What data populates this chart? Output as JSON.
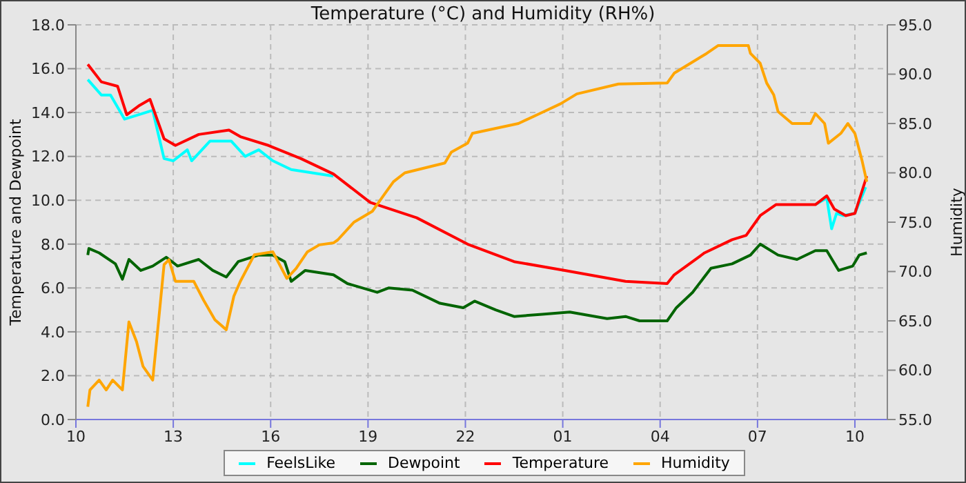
{
  "chart_data": {
    "type": "line",
    "title": "Temperature (°C) and Humidity (RH%)",
    "ylabel": "Temperature and Dewpoint",
    "y2label": "Humidity",
    "xlim": [
      "--01-01T10:00",
      "--01-02T11:00"
    ],
    "xticks": [
      {
        "value": "--01-01T10:00",
        "label": "10"
      },
      {
        "value": "--01-01T13:00",
        "label": "13"
      },
      {
        "value": "--01-01T16:00",
        "label": "16"
      },
      {
        "value": "--01-01T19:00",
        "label": "19"
      },
      {
        "value": "--01-01T22:00",
        "label": "22"
      },
      {
        "value": "--01-02T01:00",
        "label": "01"
      },
      {
        "value": "--01-02T04:00",
        "label": "04"
      },
      {
        "value": "--01-02T07:00",
        "label": "07"
      },
      {
        "value": "--01-02T10:00",
        "label": "10"
      }
    ],
    "ylim": [
      0,
      18
    ],
    "yticks": [
      {
        "value": 0,
        "label": "0.0"
      },
      {
        "value": 2,
        "label": "2.0"
      },
      {
        "value": 4,
        "label": "4.0"
      },
      {
        "value": 6,
        "label": "6.0"
      },
      {
        "value": 8,
        "label": "8.0"
      },
      {
        "value": 10,
        "label": "10.0"
      },
      {
        "value": 12,
        "label": "12.0"
      },
      {
        "value": 14,
        "label": "14.0"
      },
      {
        "value": 16,
        "label": "16.0"
      },
      {
        "value": 18,
        "label": "18.0"
      }
    ],
    "y2lim": [
      55,
      95
    ],
    "y2ticks": [
      {
        "value": 55,
        "label": "55.0"
      },
      {
        "value": 60,
        "label": "60.0"
      },
      {
        "value": 65,
        "label": "65.0"
      },
      {
        "value": 70,
        "label": "70.0"
      },
      {
        "value": 75,
        "label": "75.0"
      },
      {
        "value": 80,
        "label": "80.0"
      },
      {
        "value": 85,
        "label": "85.0"
      },
      {
        "value": 90,
        "label": "90.0"
      },
      {
        "value": 95,
        "label": "95.0"
      }
    ],
    "grid": true,
    "legend": "bottom",
    "marker": "none",
    "line_style": "solid",
    "series": [
      {
        "name": "FeelsLike",
        "color": "#00ffff",
        "x": [
          "--01-01T10:22",
          "--01-01T10:47",
          "--01-01T11:04",
          "--01-01T11:30",
          "--01-01T12:22",
          "--01-01T12:43",
          "--01-01T13:00",
          "--01-01T13:26",
          "--01-01T13:34",
          "--01-01T14:08",
          "--01-01T14:47",
          "--01-01T15:13",
          "--01-01T15:38",
          "--01-01T16:04",
          "--01-01T16:38",
          "--01-01T17:56",
          "--01-01T19:04",
          "--01-01T20:30",
          "--01-01T22:04",
          "--01-01T23:30",
          "--01-02T01:04",
          "--01-02T02:56",
          "--01-02T04:13",
          "--01-02T04:26",
          "--01-02T05:22",
          "--01-02T06:13",
          "--01-02T06:39",
          "--01-02T07:05",
          "--01-02T07:34",
          "--01-02T08:47",
          "--01-02T09:08",
          "--01-02T09:17",
          "--01-02T09:26",
          "--01-02T09:38",
          "--01-02T10:00",
          "--01-02T10:20"
        ],
        "values": [
          15.5,
          14.8,
          14.8,
          13.7,
          14.1,
          11.9,
          11.8,
          12.3,
          11.8,
          12.7,
          12.7,
          12.0,
          12.3,
          11.8,
          11.4,
          11.1,
          null,
          null,
          null,
          null,
          null,
          null,
          null,
          null,
          null,
          null,
          null,
          null,
          null,
          9.8,
          10.1,
          8.7,
          9.4,
          9.3,
          9.4,
          10.6
        ]
      },
      {
        "name": "Dewpoint",
        "color": "#006400",
        "x": [
          "--01-01T10:22",
          "--01-01T10:24",
          "--01-01T10:43",
          "--01-01T11:13",
          "--01-01T11:26",
          "--01-01T11:38",
          "--01-01T12:00",
          "--01-01T12:22",
          "--01-01T12:47",
          "--01-01T13:08",
          "--01-01T13:47",
          "--01-01T14:13",
          "--01-01T14:38",
          "--01-01T15:00",
          "--01-01T15:38",
          "--01-01T16:04",
          "--01-01T16:26",
          "--01-01T16:38",
          "--01-01T17:04",
          "--01-01T17:56",
          "--01-01T18:22",
          "--01-01T19:17",
          "--01-01T19:38",
          "--01-01T20:22",
          "--01-01T21:13",
          "--01-01T21:56",
          "--01-01T22:17",
          "--01-01T22:56",
          "--01-01T23:30",
          "--01-02T00:22",
          "--01-02T01:13",
          "--01-02T02:22",
          "--01-02T02:56",
          "--01-02T03:22",
          "--01-02T04:13",
          "--01-02T04:30",
          "--01-02T05:00",
          "--01-02T05:34",
          "--01-02T06:13",
          "--01-02T06:47",
          "--01-02T07:05",
          "--01-02T07:38",
          "--01-02T08:13",
          "--01-02T08:47",
          "--01-02T09:08",
          "--01-02T09:30",
          "--01-02T09:56",
          "--01-02T10:08",
          "--01-02T10:22"
        ],
        "values": [
          7.5,
          7.8,
          7.6,
          7.1,
          6.4,
          7.3,
          6.8,
          7.0,
          7.4,
          7.0,
          7.3,
          6.8,
          6.5,
          7.2,
          7.5,
          7.5,
          7.2,
          6.3,
          6.8,
          6.6,
          6.2,
          5.8,
          6.0,
          5.9,
          5.3,
          5.1,
          5.4,
          5.0,
          4.7,
          4.8,
          4.9,
          4.6,
          4.7,
          4.5,
          4.5,
          5.1,
          5.8,
          6.9,
          7.1,
          7.5,
          8.0,
          7.5,
          7.3,
          7.7,
          7.7,
          6.8,
          7.0,
          7.5,
          7.6
        ]
      },
      {
        "name": "Temperature",
        "color": "#ff0000",
        "x": [
          "--01-01T10:22",
          "--01-01T10:47",
          "--01-01T11:17",
          "--01-01T11:34",
          "--01-01T11:56",
          "--01-01T12:17",
          "--01-01T12:30",
          "--01-01T12:43",
          "--01-01T13:04",
          "--01-01T13:47",
          "--01-01T14:43",
          "--01-01T15:04",
          "--01-01T15:56",
          "--01-01T16:56",
          "--01-01T17:56",
          "--01-01T19:04",
          "--01-01T20:30",
          "--01-01T22:04",
          "--01-01T23:30",
          "--01-02T01:04",
          "--01-02T02:56",
          "--01-02T04:13",
          "--01-02T04:26",
          "--01-02T05:22",
          "--01-02T06:13",
          "--01-02T06:39",
          "--01-02T07:05",
          "--01-02T07:34",
          "--01-02T08:47",
          "--01-02T09:08",
          "--01-02T09:22",
          "--01-02T09:43",
          "--01-02T10:00",
          "--01-02T10:22"
        ],
        "values": [
          16.2,
          15.4,
          15.2,
          13.9,
          14.3,
          14.6,
          13.7,
          12.8,
          12.5,
          13.0,
          13.2,
          12.9,
          12.5,
          11.9,
          11.2,
          9.9,
          9.2,
          8.0,
          7.2,
          6.8,
          6.3,
          6.2,
          6.6,
          7.6,
          8.2,
          8.4,
          9.3,
          9.8,
          9.8,
          10.2,
          9.6,
          9.3,
          9.4,
          11.1
        ]
      },
      {
        "name": "Humidity",
        "color": "#ffa500",
        "axis": "y2",
        "x": [
          "--01-01T10:22",
          "--01-01T10:26",
          "--01-01T10:43",
          "--01-01T10:56",
          "--01-01T11:08",
          "--01-01T11:26",
          "--01-01T11:38",
          "--01-01T11:52",
          "--01-01T12:04",
          "--01-01T12:22",
          "--01-01T12:30",
          "--01-01T12:43",
          "--01-01T12:52",
          "--01-01T13:04",
          "--01-01T13:38",
          "--01-01T13:56",
          "--01-01T14:17",
          "--01-01T14:38",
          "--01-01T14:52",
          "--01-01T15:04",
          "--01-01T15:30",
          "--01-01T16:04",
          "--01-01T16:30",
          "--01-01T16:47",
          "--01-01T17:08",
          "--01-01T17:30",
          "--01-01T17:56",
          "--01-01T18:04",
          "--01-01T18:34",
          "--01-01T19:08",
          "--01-01T19:30",
          "--01-01T19:47",
          "--01-01T20:08",
          "--01-01T21:22",
          "--01-01T21:34",
          "--01-01T22:04",
          "--01-01T22:13",
          "--01-01T23:38",
          "--01-02T00:17",
          "--01-02T00:56",
          "--01-02T01:26",
          "--01-02T02:43",
          "--01-02T04:13",
          "--01-02T04:26",
          "--01-02T04:56",
          "--01-02T05:26",
          "--01-02T05:47",
          "--01-02T06:43",
          "--01-02T06:47",
          "--01-02T07:05",
          "--01-02T07:17",
          "--01-02T07:30",
          "--01-02T07:38",
          "--01-02T08:04",
          "--01-02T08:38",
          "--01-02T08:47",
          "--01-02T09:04",
          "--01-02T09:11",
          "--01-02T09:34",
          "--01-02T09:47",
          "--01-02T10:00",
          "--01-02T10:13",
          "--01-02T10:22"
        ],
        "values": [
          56.3,
          58,
          59,
          58,
          59,
          58,
          64.9,
          62.9,
          60.4,
          59,
          63.4,
          70.7,
          71.2,
          69,
          69,
          67.1,
          65.1,
          64.1,
          67.5,
          69,
          71.7,
          72,
          69.3,
          70.3,
          72,
          72.7,
          72.9,
          73.2,
          75,
          76.1,
          77.8,
          79.1,
          80,
          81,
          82.1,
          83,
          84,
          85,
          86,
          87,
          88,
          89,
          89.1,
          90.1,
          91.1,
          92.1,
          92.9,
          92.9,
          92.1,
          91.1,
          89.1,
          87.9,
          86.2,
          85,
          85,
          86,
          85,
          83,
          84,
          85,
          84,
          81.3,
          79.1
        ]
      }
    ]
  }
}
